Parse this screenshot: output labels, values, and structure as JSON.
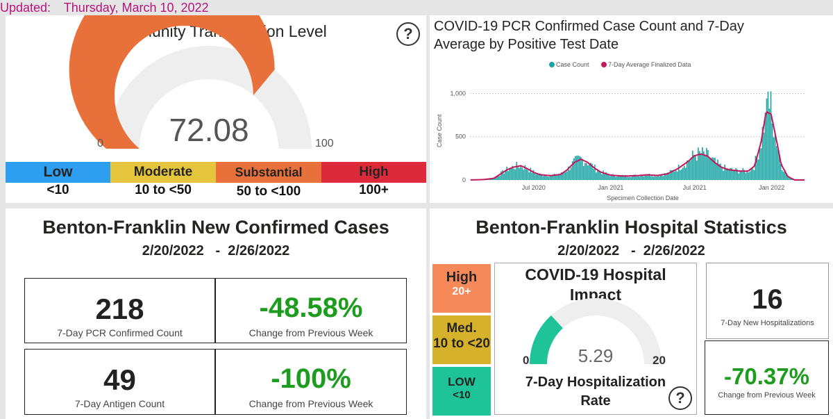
{
  "updated": {
    "label": "Updated:",
    "date": "Thursday, March 10, 2022"
  },
  "transmission": {
    "title": "Community Transmission Level",
    "help": "?",
    "value": 72.08,
    "value_text": "72.08",
    "min": "0",
    "max": "100",
    "gauge_color": "#e8703a",
    "gauge_bg": "#eeeeee",
    "levels": [
      {
        "name": "Low",
        "range": "<10",
        "color": "#2d9ef0"
      },
      {
        "name": "Moderate",
        "range": "10 to <50",
        "color": "#e4c53c"
      },
      {
        "name": "Substantial",
        "range": "50 to <100",
        "color": "#e8703a"
      },
      {
        "name": "High",
        "range": "100+",
        "color": "#dc2a3a"
      }
    ]
  },
  "case_chart": {
    "title_line1": "COVID-19 PCR Confirmed Case Count and 7-Day",
    "title_line2": "Average by Positive Test Date"
  },
  "chart_data": {
    "type": "bar",
    "title": "COVID-19 PCR Confirmed Case Count and 7-Day Average by Positive Test Date",
    "xlabel": "Specimen Collection Date",
    "ylabel": "Case Count",
    "x_ticks": [
      "Jul 2020",
      "Jan 2021",
      "Jul 2021",
      "Jan 2022"
    ],
    "y_ticks": [
      "0",
      "500",
      "1,000"
    ],
    "ylim": [
      0,
      1100
    ],
    "legend_position": "top-center",
    "grid": true,
    "series": [
      {
        "name": "Case Count",
        "color": "#1aa3a3"
      },
      {
        "name": "7-Day Average Finalized Data",
        "color": "#c2185b"
      }
    ],
    "points": [
      [
        0.0,
        0
      ],
      [
        0.04,
        5
      ],
      [
        0.07,
        20
      ],
      [
        0.09,
        70
      ],
      [
        0.11,
        120
      ],
      [
        0.13,
        150
      ],
      [
        0.15,
        165
      ],
      [
        0.17,
        130
      ],
      [
        0.19,
        85
      ],
      [
        0.21,
        60
      ],
      [
        0.24,
        50
      ],
      [
        0.27,
        65
      ],
      [
        0.29,
        120
      ],
      [
        0.31,
        200
      ],
      [
        0.33,
        240
      ],
      [
        0.35,
        205
      ],
      [
        0.37,
        140
      ],
      [
        0.39,
        90
      ],
      [
        0.42,
        55
      ],
      [
        0.46,
        45
      ],
      [
        0.5,
        50
      ],
      [
        0.53,
        60
      ],
      [
        0.56,
        52
      ],
      [
        0.59,
        72
      ],
      [
        0.62,
        130
      ],
      [
        0.65,
        210
      ],
      [
        0.67,
        280
      ],
      [
        0.69,
        300
      ],
      [
        0.71,
        275
      ],
      [
        0.73,
        205
      ],
      [
        0.75,
        150
      ],
      [
        0.77,
        120
      ],
      [
        0.8,
        105
      ],
      [
        0.83,
        100
      ],
      [
        0.85,
        160
      ],
      [
        0.87,
        440
      ],
      [
        0.885,
        790
      ],
      [
        0.9,
        760
      ],
      [
        0.915,
        480
      ],
      [
        0.93,
        180
      ],
      [
        0.95,
        40
      ],
      [
        0.97,
        0
      ]
    ]
  },
  "cases": {
    "title": "Benton-Franklin New Confirmed Cases",
    "date_range": "2/20/2022   -  2/26/2022",
    "pcr_value": "218",
    "pcr_label": "7-Day PCR Confirmed Count",
    "pcr_change": "-48.58%",
    "pcr_change_label": "Change from Previous Week",
    "antigen_value": "49",
    "antigen_label": "7-Day Antigen Count",
    "antigen_change": "-100%",
    "antigen_change_label": "Change from Previous Week",
    "change_color": "#1e9c1e"
  },
  "hospital": {
    "title": "Benton-Franklin Hospital Statistics",
    "date_range": "2/20/2022   -  2/26/2022",
    "levels": [
      {
        "name": "High",
        "range": "20+",
        "color": "#f5895a"
      },
      {
        "name": "Med.",
        "range": "10 to <20",
        "color": "#d6b12a"
      },
      {
        "name": "LOW",
        "range": "<10",
        "color": "#1fc398"
      }
    ],
    "impact_title_l1": "COVID-19 Hospital",
    "impact_title_l2": "Impact",
    "rate": 5.29,
    "rate_text": "5.29",
    "rate_min": "0",
    "rate_max": "20",
    "rate_label_l1": "7-Day Hospitalization",
    "rate_label_l2": "Rate",
    "gauge_color": "#1fc398",
    "help": "?",
    "new_hosp_value": "16",
    "new_hosp_label": "7-Day New Hospitalizations",
    "hosp_change": "-70.37%",
    "hosp_change_label": "Change from Previous Week"
  }
}
